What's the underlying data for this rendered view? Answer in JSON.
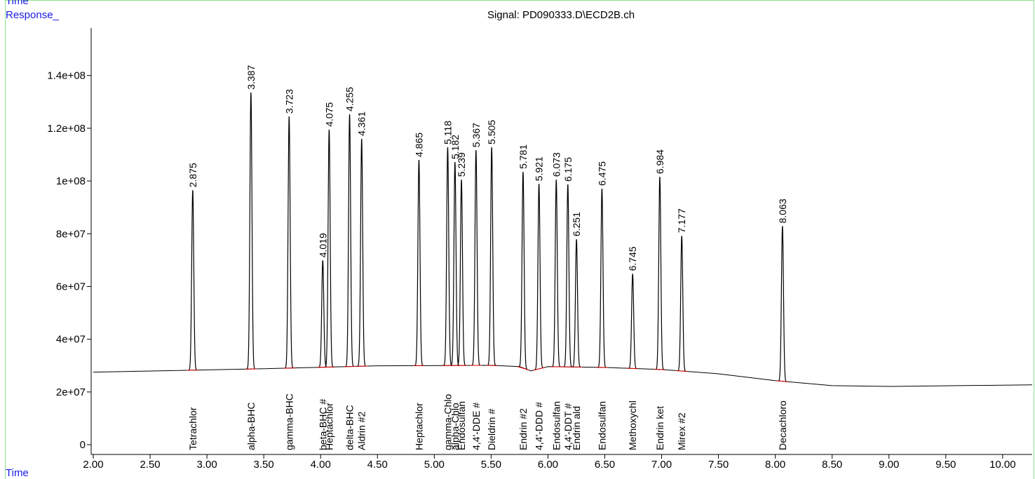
{
  "chart_data": {
    "type": "line",
    "header_label": "Time",
    "y_label": "Response_",
    "x_label": "Time",
    "title": "Signal: PD090333.D\\ECD2B.ch",
    "x": [
      2.875,
      3.387,
      3.723,
      4.019,
      4.075,
      4.255,
      4.361,
      4.865,
      5.118,
      5.182,
      5.239,
      5.367,
      5.505,
      5.781,
      5.921,
      6.073,
      6.175,
      6.251,
      6.475,
      6.745,
      6.984,
      7.177,
      8.063
    ],
    "values": [
      96500000,
      133600000,
      124500000,
      69900000,
      119500000,
      125300000,
      116000000,
      108000000,
      112800000,
      107200000,
      100500000,
      111700000,
      112800000,
      103500000,
      98900000,
      100500000,
      98700000,
      77900000,
      97100000,
      64800000,
      101600000,
      79200000,
      82900000
    ],
    "peak_labels": [
      "Tetrachlor",
      "alpha-BHC",
      "gamma-BHC",
      "beta-BHC #",
      "Heptachlor",
      "delta-BHC",
      "Aldrin #2",
      "Heptachlor",
      "gamma-Chlo",
      "alpha-Chlo",
      "Endosulfan",
      "4,4'-DDE #",
      "Dieldrin #",
      "Endrin #2",
      "4,4'-DDD #",
      "Endosulfan",
      "4,4'-DDT #",
      "Endrin ald",
      "Endosulfan",
      "Methoxychl",
      "Endrin ket",
      "Mirex #2",
      "Decachloro"
    ],
    "baseline": {
      "x": [
        2.0,
        3.5,
        4.5,
        5.5,
        5.75,
        5.85,
        6.0,
        6.5,
        7.0,
        7.5,
        8.0,
        8.5,
        9.0,
        10.26
      ],
      "values": [
        27500000,
        28800000,
        29900000,
        30100000,
        29600000,
        28000000,
        29600000,
        29300000,
        28500000,
        26900000,
        24300000,
        22400000,
        22100000,
        22700000
      ]
    },
    "line_color": "#000000",
    "label_color": "#1a1ae6",
    "baseline_marker_color": "#e00000",
    "xlim": [
      2.0,
      10.26
    ],
    "ylim": [
      -3700000,
      158000000
    ],
    "xticks": [
      {
        "value": 2,
        "label": "2.00"
      },
      {
        "value": 2.5,
        "label": "2.50"
      },
      {
        "value": 3,
        "label": "3.00"
      },
      {
        "value": 3.5,
        "label": "3.50"
      },
      {
        "value": 4,
        "label": "4.00"
      },
      {
        "value": 4.5,
        "label": "4.50"
      },
      {
        "value": 5,
        "label": "5.00"
      },
      {
        "value": 5.5,
        "label": "5.50"
      },
      {
        "value": 6,
        "label": "6.00"
      },
      {
        "value": 6.5,
        "label": "6.50"
      },
      {
        "value": 7,
        "label": "7.00"
      },
      {
        "value": 7.5,
        "label": "7.50"
      },
      {
        "value": 8,
        "label": "8.00"
      },
      {
        "value": 8.5,
        "label": "8.50"
      },
      {
        "value": 9,
        "label": "9.00"
      },
      {
        "value": 9.5,
        "label": "9.50"
      },
      {
        "value": 10,
        "label": "10.00"
      }
    ],
    "yticks": [
      0,
      {
        "value": 20000000,
        "label": "2e+07"
      },
      {
        "value": 40000000,
        "label": "4e+07"
      },
      {
        "value": 60000000,
        "label": "6e+07"
      },
      {
        "value": 80000000,
        "label": "8e+07"
      },
      {
        "value": 100000000,
        "label": "1e+08"
      },
      {
        "value": 120000000,
        "label": "1.2e+08"
      },
      {
        "value": 140000000,
        "label": "1.4e+08"
      }
    ]
  }
}
